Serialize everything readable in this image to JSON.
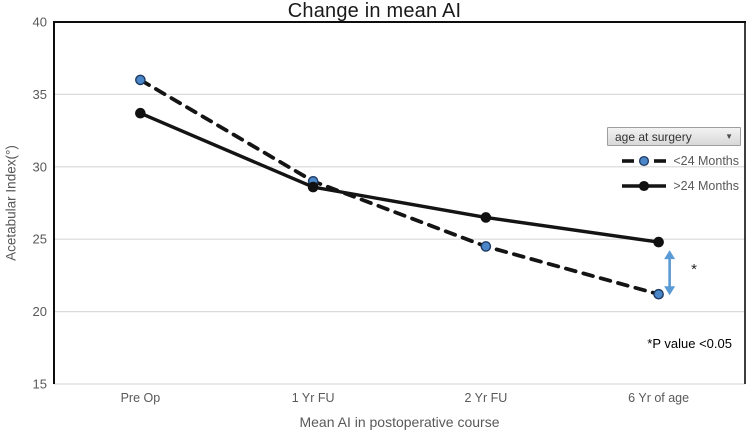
{
  "title": "Change in mean AI",
  "legend": {
    "filter_button": {
      "label": "age at surgery",
      "dropdown_icon": "▼"
    },
    "entries": [
      {
        "label": "<24 Months"
      },
      {
        "label": ">24 Months"
      }
    ]
  },
  "annotations": {
    "significance_star": "*",
    "p_value_note": "*P value <0.05"
  },
  "colors": {
    "grid": "#d9d9d9",
    "axis_border": "#0d0d0d",
    "tick_text": "#595959",
    "line_black": "#141414",
    "marker_blue": "#4a86c8",
    "marker_blue_outline": "#1f3b63",
    "arrow_blue": "#5b9bd5"
  },
  "chart_data": {
    "type": "line",
    "title": "Change in mean AI",
    "categories": [
      "Pre Op",
      "1 Yr FU",
      "2 Yr FU",
      "6 Yr of age"
    ],
    "series": [
      {
        "name": "<24 Months",
        "values": [
          36,
          29,
          24.5,
          21.2
        ],
        "line_style": "dashed",
        "line_color": "#141414",
        "marker": "circle",
        "marker_fill": "#4a86c8",
        "marker_stroke": "#1f3b63"
      },
      {
        "name": ">24 Months",
        "values": [
          33.7,
          28.6,
          26.5,
          24.8
        ],
        "line_style": "solid",
        "line_color": "#141414",
        "marker": "circle",
        "marker_fill": "#111111",
        "marker_stroke": "#111111"
      }
    ],
    "xlabel": "Mean AI in postoperative course",
    "ylabel": "Acetabular Index(°)",
    "ylim": [
      15,
      40
    ],
    "ytick_step": 5,
    "grid": true,
    "legend_position": "inside-right",
    "arrow_annotation": {
      "category_index": 3,
      "from_value": 24.8,
      "to_value": 21.2,
      "x_offset": 11,
      "color": "#5b9bd5",
      "label": "*"
    }
  }
}
